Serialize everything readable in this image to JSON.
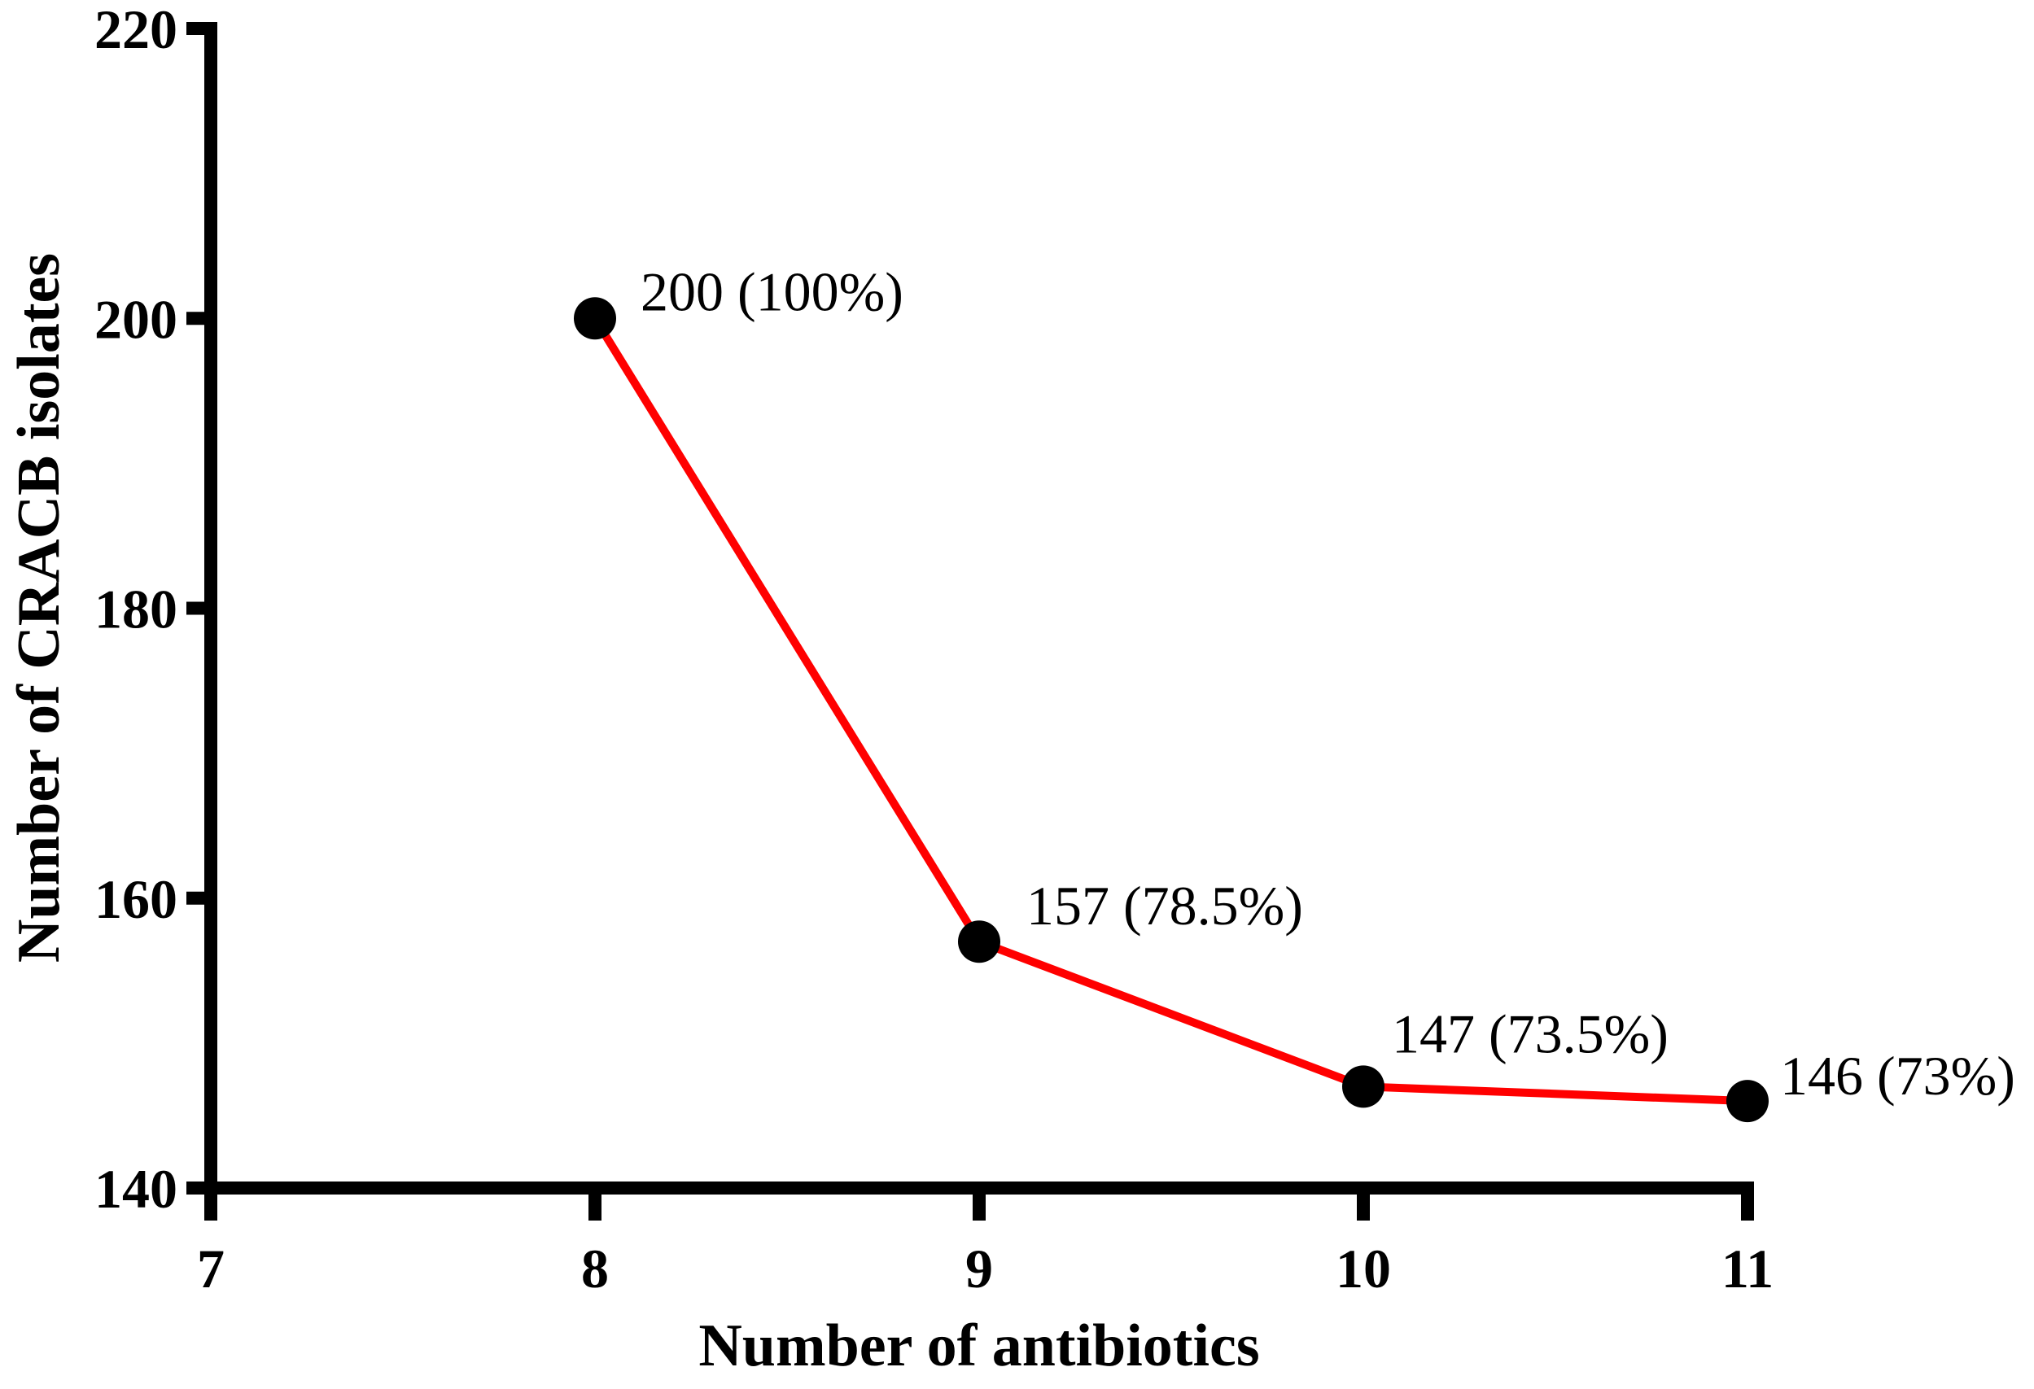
{
  "chart_data": {
    "type": "line",
    "x": [
      8,
      9,
      10,
      11
    ],
    "y": [
      200,
      157,
      147,
      146
    ],
    "point_labels": [
      "200 (100%)",
      "157 (78.5%)",
      "147 (73.5%)",
      "146 (73%)"
    ],
    "series_name": "CRACB isolates",
    "title": "",
    "xlabel": "Number of antibiotics",
    "ylabel": "Number of CRACB isolates",
    "xticks": [
      7,
      8,
      9,
      10,
      11
    ],
    "yticks": [
      140,
      160,
      180,
      200,
      220
    ],
    "xlim": [
      7,
      11
    ],
    "ylim": [
      140,
      220
    ],
    "grid": false,
    "legend_position": "none",
    "line_color": "#FF0000",
    "marker_color": "#000000",
    "axis_color": "#000000",
    "label_color": "#000000",
    "background_color": "#FFFFFF"
  }
}
